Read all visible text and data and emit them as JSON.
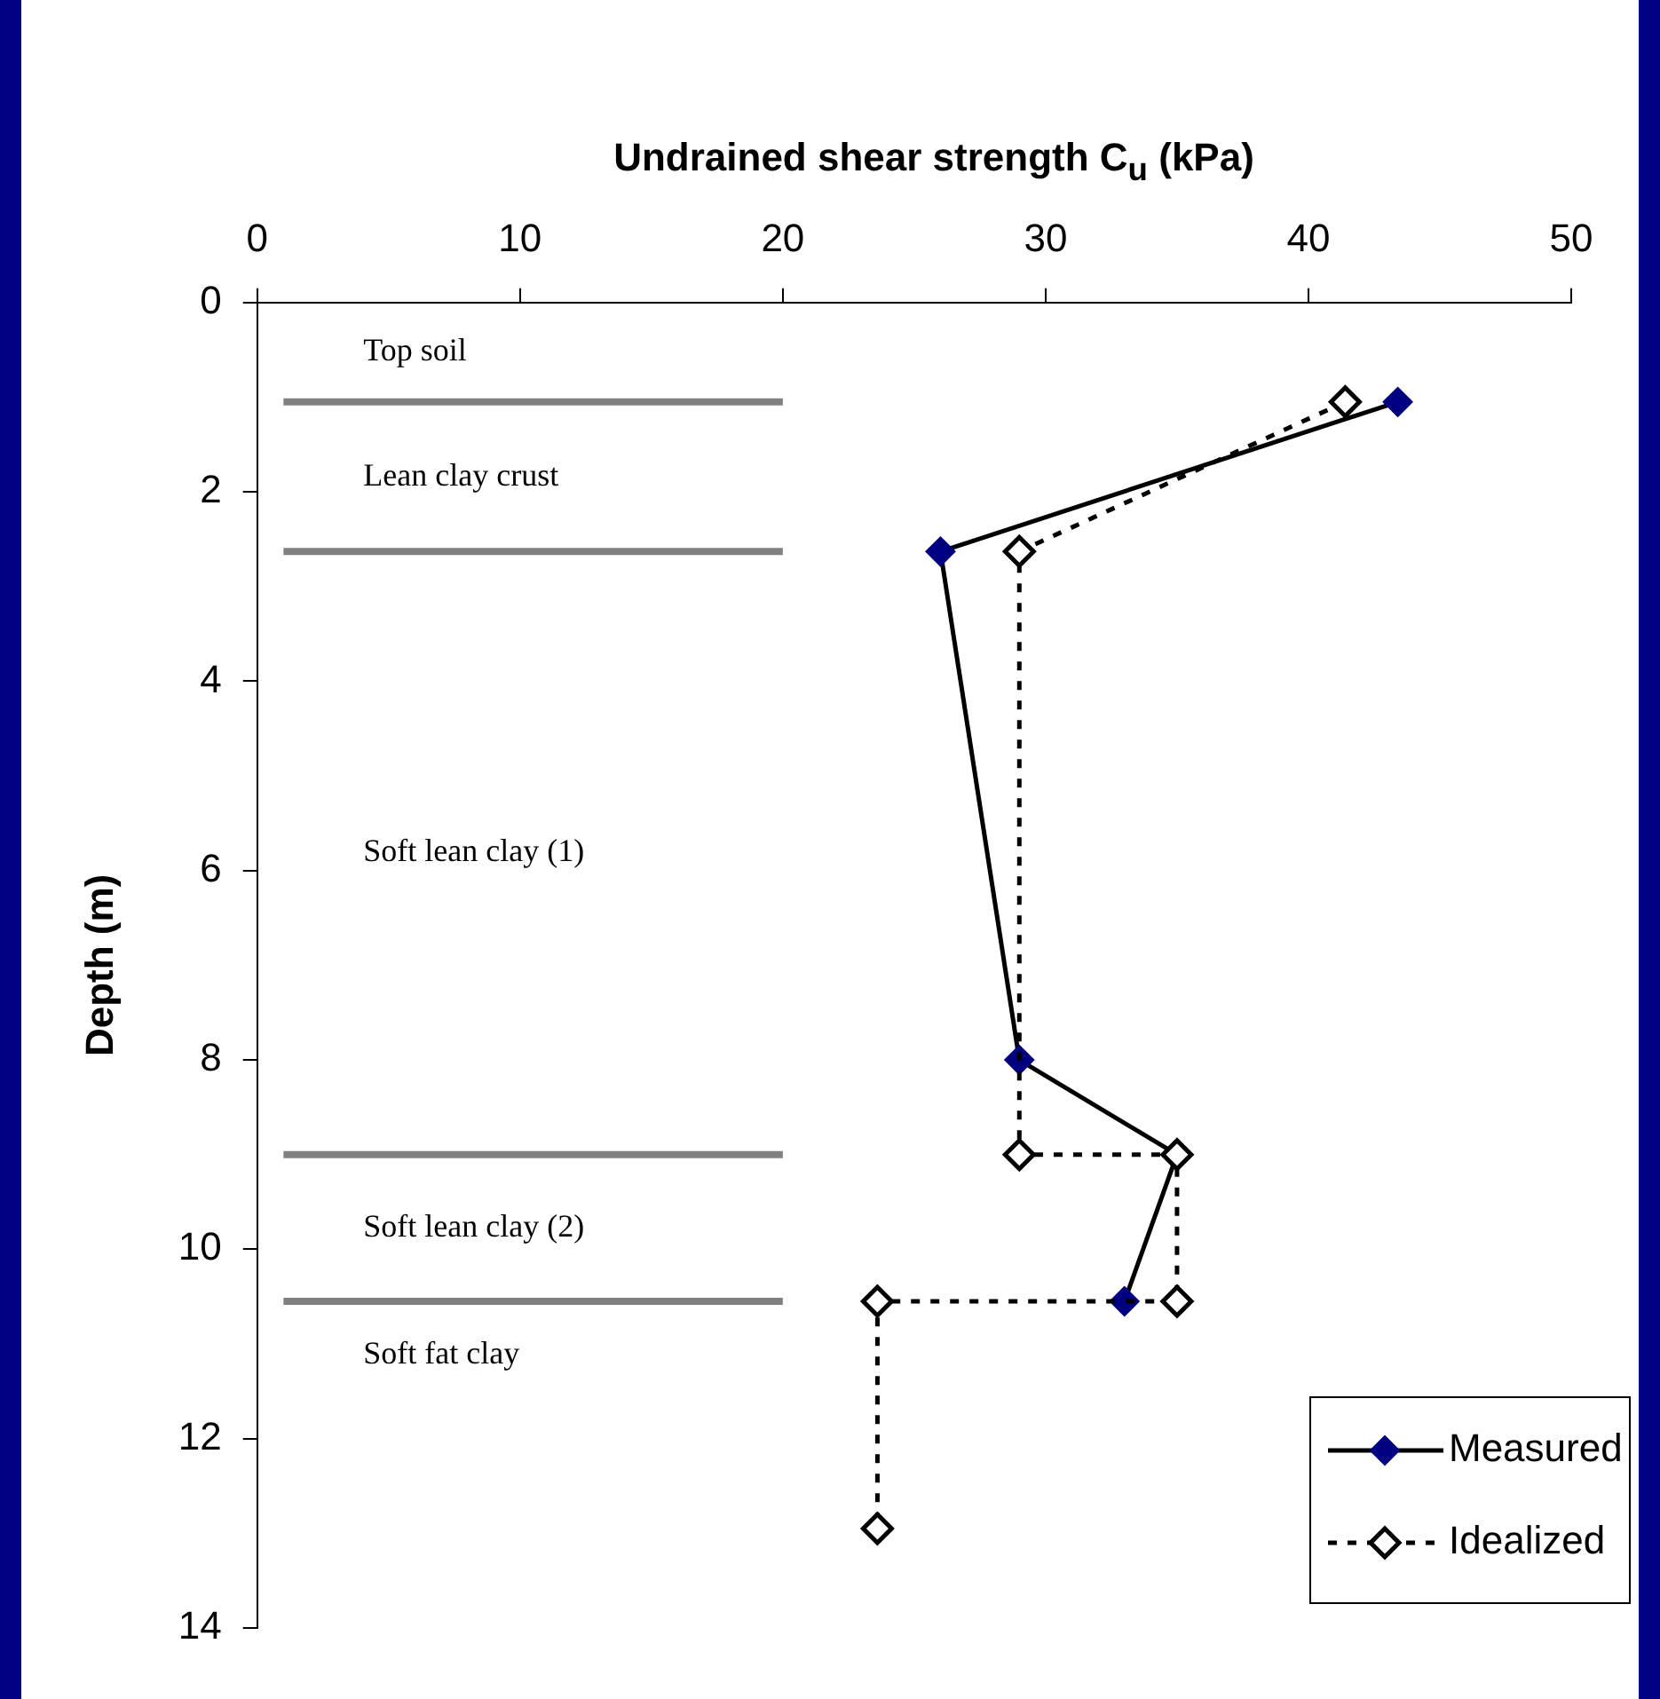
{
  "chart_data": {
    "type": "line",
    "xlabel": "Undrained shear strength C$_{u}$ (kPa)",
    "ylabel": "Depth (m)",
    "xlim": [
      0,
      50
    ],
    "xticks": [
      0,
      10,
      20,
      30,
      40,
      50
    ],
    "ylim": [
      14,
      0
    ],
    "yticks": [
      0,
      2,
      4,
      6,
      8,
      10,
      12,
      14
    ],
    "grid": false,
    "legend": "bottom right",
    "marker": "diamond",
    "series": [
      {
        "name": "Measured",
        "color": "#000080",
        "line_style": "solid",
        "x": [
          43.4,
          26.0,
          29.0,
          35.0,
          33.0
        ],
        "values": [
          1.05,
          2.63,
          8.0,
          9.0,
          10.55
        ]
      },
      {
        "name": "Idealized",
        "color": "#000000",
        "line_style": "dashed",
        "x": [
          41.4,
          29.0,
          29.0,
          35.0,
          35.0,
          23.6,
          23.6
        ],
        "values": [
          1.05,
          2.63,
          9.0,
          9.0,
          10.55,
          10.55,
          12.95
        ]
      },
      {
        "color": "#808080",
        "marker": "none",
        "x": [
          1,
          20
        ],
        "values": [
          1.05,
          1.05
        ]
      },
      {
        "color": "#808080",
        "marker": "none",
        "x": [
          1,
          20
        ],
        "values": [
          2.63,
          2.63
        ]
      },
      {
        "color": "#808080",
        "marker": "none",
        "x": [
          1,
          20
        ],
        "values": [
          9.0,
          9.0
        ]
      },
      {
        "color": "#808080",
        "marker": "none",
        "x": [
          1,
          20
        ],
        "values": [
          10.55,
          10.55
        ]
      }
    ],
    "annotations": [
      "Top soil",
      "Lean clay crust",
      "Soft lean clay (1)",
      "Soft lean clay (2)",
      "Soft fat clay"
    ]
  }
}
